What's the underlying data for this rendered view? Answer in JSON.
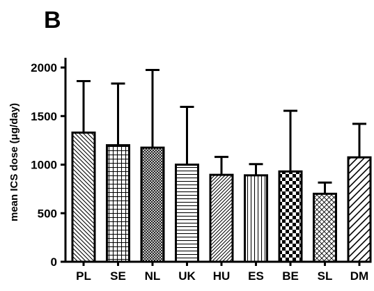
{
  "panel_label": "B",
  "chart_data": {
    "type": "bar",
    "title": "",
    "xlabel": "",
    "ylabel": "mean ICS dose (μg/day)",
    "ylim": [
      0,
      2000
    ],
    "yticks": [
      0,
      500,
      1000,
      1500,
      2000
    ],
    "grid": false,
    "legend": "none",
    "error_bars": "upper",
    "bar_color": "#ffffff",
    "edge_color": "#000000",
    "categories": [
      "PL",
      "SE",
      "NL",
      "UK",
      "HU",
      "ES",
      "BE",
      "SL",
      "DM"
    ],
    "patterns": [
      "diagonal-down",
      "grid",
      "crosshatch-fine",
      "horizontal",
      "diagonal-up-fine",
      "vertical",
      "checkerboard",
      "crosshatch-diagonal",
      "diagonal-up-wide"
    ],
    "values": [
      1330,
      1200,
      1175,
      1000,
      895,
      890,
      930,
      700,
      1075
    ],
    "error_upper": [
      1860,
      1835,
      1975,
      1595,
      1080,
      1005,
      1555,
      815,
      1420
    ]
  }
}
